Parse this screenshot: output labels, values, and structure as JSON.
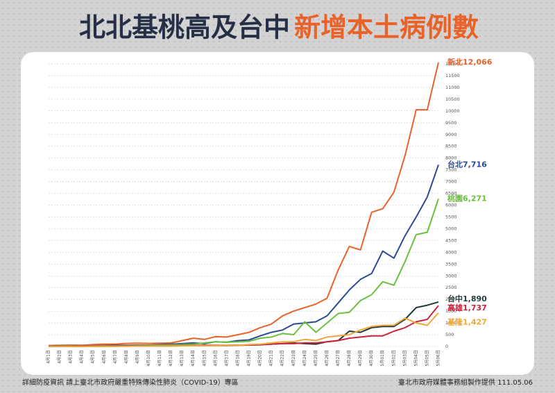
{
  "chart_data": {
    "type": "line",
    "title": "北北基桃高及台中",
    "title_highlight": "新增本土病例數",
    "footer_left": "詳細防疫資訊 請上臺北市政府嚴重特殊傳染性肺炎（COVID-19）專區",
    "footer_right": "臺北市政府媒體事務組製作提供 111.05.06",
    "categories": [
      "4月1日",
      "4月2日",
      "4月3日",
      "4月4日",
      "4月5日",
      "4月6日",
      "4月7日",
      "4月8日",
      "4月9日",
      "4月10日",
      "4月11日",
      "4月12日",
      "4月13日",
      "4月14日",
      "4月15日",
      "4月16日",
      "4月17日",
      "4月18日",
      "4月19日",
      "4月20日",
      "4月21日",
      "4月22日",
      "4月23日",
      "4月24日",
      "4月25日",
      "4月26日",
      "4月27日",
      "4月28日",
      "4月29日",
      "4月30日",
      "5月01日",
      "5月02日",
      "5月03日",
      "5月04日",
      "5月05日",
      "5月06日"
    ],
    "series": [
      {
        "name": "新北12,066",
        "color": "#e8622a",
        "values": [
          40,
          50,
          60,
          50,
          80,
          100,
          100,
          130,
          140,
          130,
          140,
          150,
          250,
          350,
          300,
          420,
          400,
          500,
          600,
          800,
          950,
          1300,
          1500,
          1650,
          1800,
          2050,
          3250,
          4250,
          4100,
          5700,
          5850,
          6550,
          8100,
          10050,
          10050,
          12066
        ]
      },
      {
        "name": "台北7,716",
        "color": "#2b4a93",
        "values": [
          20,
          30,
          30,
          20,
          30,
          40,
          50,
          50,
          60,
          60,
          80,
          100,
          120,
          150,
          120,
          200,
          180,
          250,
          280,
          450,
          600,
          700,
          950,
          1000,
          1050,
          1300,
          1850,
          2400,
          2850,
          3100,
          4050,
          3750,
          4700,
          5500,
          6350,
          7716
        ]
      },
      {
        "name": "桃園6,271",
        "color": "#6cbf3c",
        "values": [
          10,
          20,
          20,
          10,
          20,
          30,
          30,
          40,
          40,
          50,
          60,
          70,
          80,
          100,
          150,
          200,
          180,
          200,
          220,
          350,
          400,
          550,
          500,
          1050,
          600,
          1000,
          1400,
          1450,
          1950,
          2200,
          2750,
          2600,
          3600,
          4750,
          4850,
          6271
        ]
      },
      {
        "name": "台中1,890",
        "color": "#1f3a3a",
        "values": [
          5,
          5,
          10,
          5,
          10,
          10,
          10,
          20,
          20,
          20,
          20,
          20,
          30,
          30,
          40,
          40,
          40,
          50,
          60,
          70,
          100,
          120,
          150,
          120,
          100,
          200,
          250,
          650,
          600,
          800,
          850,
          850,
          1150,
          1650,
          1750,
          1890
        ]
      },
      {
        "name": "高雄1,737",
        "color": "#c8233f",
        "values": [
          10,
          10,
          10,
          10,
          20,
          20,
          20,
          20,
          30,
          30,
          30,
          30,
          40,
          40,
          50,
          50,
          50,
          60,
          60,
          80,
          100,
          120,
          120,
          150,
          150,
          200,
          250,
          350,
          400,
          450,
          450,
          650,
          800,
          1050,
          1150,
          1737
        ]
      },
      {
        "name": "基隆1,427",
        "color": "#f0a838",
        "values": [
          5,
          5,
          5,
          5,
          10,
          10,
          10,
          10,
          20,
          20,
          20,
          20,
          30,
          30,
          30,
          40,
          50,
          50,
          80,
          100,
          150,
          200,
          200,
          300,
          250,
          400,
          450,
          500,
          700,
          850,
          900,
          900,
          1200,
          1000,
          900,
          1427
        ]
      }
    ],
    "ylim": [
      0,
      12000
    ],
    "yticks": [
      0,
      500,
      1000,
      1500,
      2000,
      2500,
      3000,
      3500,
      4000,
      4500,
      5000,
      5500,
      6000,
      6500,
      7000,
      7500,
      8000,
      8500,
      9000,
      9500,
      10000,
      10500,
      11000,
      11500,
      12000
    ],
    "grid": true
  }
}
